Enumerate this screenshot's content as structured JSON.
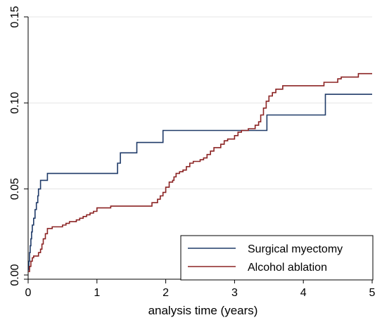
{
  "chart_data": {
    "type": "line",
    "title": "",
    "xlabel": "analysis time (years)",
    "ylabel": "",
    "xlim": [
      0,
      5
    ],
    "ylim": [
      0,
      0.15
    ],
    "x_ticks": [
      0,
      1,
      2,
      3,
      4,
      5
    ],
    "x_tick_labels": [
      "0",
      "1",
      "2",
      "3",
      "4",
      "5"
    ],
    "y_ticks": [
      0,
      0.05,
      0.1,
      0.15
    ],
    "y_tick_labels": [
      "0.00",
      "0.05",
      "0.10",
      "0.15"
    ],
    "grid": true,
    "step": true,
    "legend_position": "bottom-right",
    "series": [
      {
        "name": "Surgical myectomy",
        "color": "#1f3a68",
        "x": [
          0,
          0.01,
          0.02,
          0.03,
          0.04,
          0.05,
          0.06,
          0.08,
          0.1,
          0.12,
          0.14,
          0.15,
          0.18,
          0.2,
          0.28,
          1.0,
          1.3,
          1.34,
          1.38,
          1.58,
          1.96,
          3.47,
          4.32,
          5.0
        ],
        "y": [
          0.003,
          0.008,
          0.013,
          0.017,
          0.021,
          0.025,
          0.029,
          0.033,
          0.038,
          0.042,
          0.046,
          0.05,
          0.055,
          0.055,
          0.059,
          0.059,
          0.065,
          0.071,
          0.071,
          0.077,
          0.084,
          0.093,
          0.105,
          0.105
        ]
      },
      {
        "name": "Alcohol ablation",
        "color": "#8b2323",
        "x": [
          0,
          0.02,
          0.04,
          0.06,
          0.08,
          0.15,
          0.18,
          0.2,
          0.22,
          0.25,
          0.28,
          0.35,
          0.5,
          0.55,
          0.6,
          0.65,
          0.7,
          0.75,
          0.8,
          0.85,
          0.9,
          0.95,
          1.0,
          1.1,
          1.2,
          1.3,
          1.4,
          1.5,
          1.6,
          1.7,
          1.8,
          1.88,
          1.92,
          1.96,
          2.0,
          2.05,
          2.1,
          2.12,
          2.15,
          2.2,
          2.25,
          2.3,
          2.35,
          2.4,
          2.5,
          2.55,
          2.6,
          2.65,
          2.7,
          2.8,
          2.85,
          2.9,
          3.0,
          3.05,
          3.1,
          3.2,
          3.3,
          3.35,
          3.38,
          3.42,
          3.46,
          3.5,
          3.55,
          3.6,
          3.7,
          4.0,
          4.3,
          4.5,
          4.55,
          4.8,
          5.0
        ],
        "y": [
          0.002,
          0.005,
          0.008,
          0.01,
          0.011,
          0.013,
          0.015,
          0.018,
          0.021,
          0.024,
          0.027,
          0.028,
          0.029,
          0.03,
          0.031,
          0.031,
          0.032,
          0.033,
          0.034,
          0.035,
          0.036,
          0.037,
          0.039,
          0.039,
          0.04,
          0.04,
          0.04,
          0.04,
          0.04,
          0.04,
          0.042,
          0.044,
          0.046,
          0.048,
          0.051,
          0.054,
          0.055,
          0.057,
          0.059,
          0.06,
          0.061,
          0.063,
          0.065,
          0.066,
          0.067,
          0.068,
          0.07,
          0.072,
          0.074,
          0.076,
          0.078,
          0.079,
          0.081,
          0.083,
          0.084,
          0.085,
          0.087,
          0.089,
          0.093,
          0.097,
          0.101,
          0.104,
          0.106,
          0.108,
          0.11,
          0.11,
          0.112,
          0.114,
          0.115,
          0.117,
          0.117
        ]
      }
    ]
  }
}
